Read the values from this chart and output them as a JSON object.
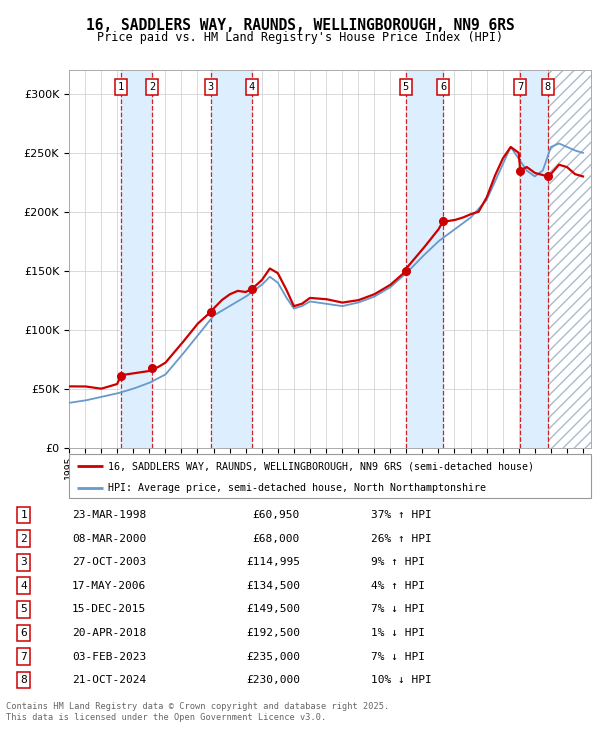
{
  "title": "16, SADDLERS WAY, RAUNDS, WELLINGBOROUGH, NN9 6RS",
  "subtitle": "Price paid vs. HM Land Registry's House Price Index (HPI)",
  "transactions": [
    {
      "num": 1,
      "date": "23-MAR-1998",
      "year": 1998.22,
      "price": 60950,
      "pct": "37%",
      "dir": "↑"
    },
    {
      "num": 2,
      "date": "08-MAR-2000",
      "year": 2000.19,
      "price": 68000,
      "pct": "26%",
      "dir": "↑"
    },
    {
      "num": 3,
      "date": "27-OCT-2003",
      "year": 2003.82,
      "price": 114995,
      "pct": "9%",
      "dir": "↑"
    },
    {
      "num": 4,
      "date": "17-MAY-2006",
      "year": 2006.38,
      "price": 134500,
      "pct": "4%",
      "dir": "↑"
    },
    {
      "num": 5,
      "date": "15-DEC-2015",
      "year": 2015.96,
      "price": 149500,
      "pct": "7%",
      "dir": "↓"
    },
    {
      "num": 6,
      "date": "20-APR-2018",
      "year": 2018.3,
      "price": 192500,
      "pct": "1%",
      "dir": "↓"
    },
    {
      "num": 7,
      "date": "03-FEB-2023",
      "year": 2023.09,
      "price": 235000,
      "pct": "7%",
      "dir": "↓"
    },
    {
      "num": 8,
      "date": "21-OCT-2024",
      "year": 2024.81,
      "price": 230000,
      "pct": "10%",
      "dir": "↓"
    }
  ],
  "legend_line1": "16, SADDLERS WAY, RAUNDS, WELLINGBOROUGH, NN9 6RS (semi-detached house)",
  "legend_line2": "HPI: Average price, semi-detached house, North Northamptonshire",
  "footer1": "Contains HM Land Registry data © Crown copyright and database right 2025.",
  "footer2": "This data is licensed under the Open Government Licence v3.0.",
  "hpi_color": "#6699cc",
  "price_color": "#cc0000",
  "marker_color": "#cc0000",
  "dashed_color": "#cc0000",
  "shade_color": "#ddeeff",
  "hatch_color": "#aabbcc",
  "ylim": [
    0,
    320000
  ],
  "yticks": [
    0,
    50000,
    100000,
    150000,
    200000,
    250000,
    300000
  ],
  "xlim": [
    1995.0,
    2027.5
  ],
  "xticks": [
    1995,
    1996,
    1997,
    1998,
    1999,
    2000,
    2001,
    2002,
    2003,
    2004,
    2005,
    2006,
    2007,
    2008,
    2009,
    2010,
    2011,
    2012,
    2013,
    2014,
    2015,
    2016,
    2017,
    2018,
    2019,
    2020,
    2021,
    2022,
    2023,
    2024,
    2025,
    2026,
    2027
  ]
}
